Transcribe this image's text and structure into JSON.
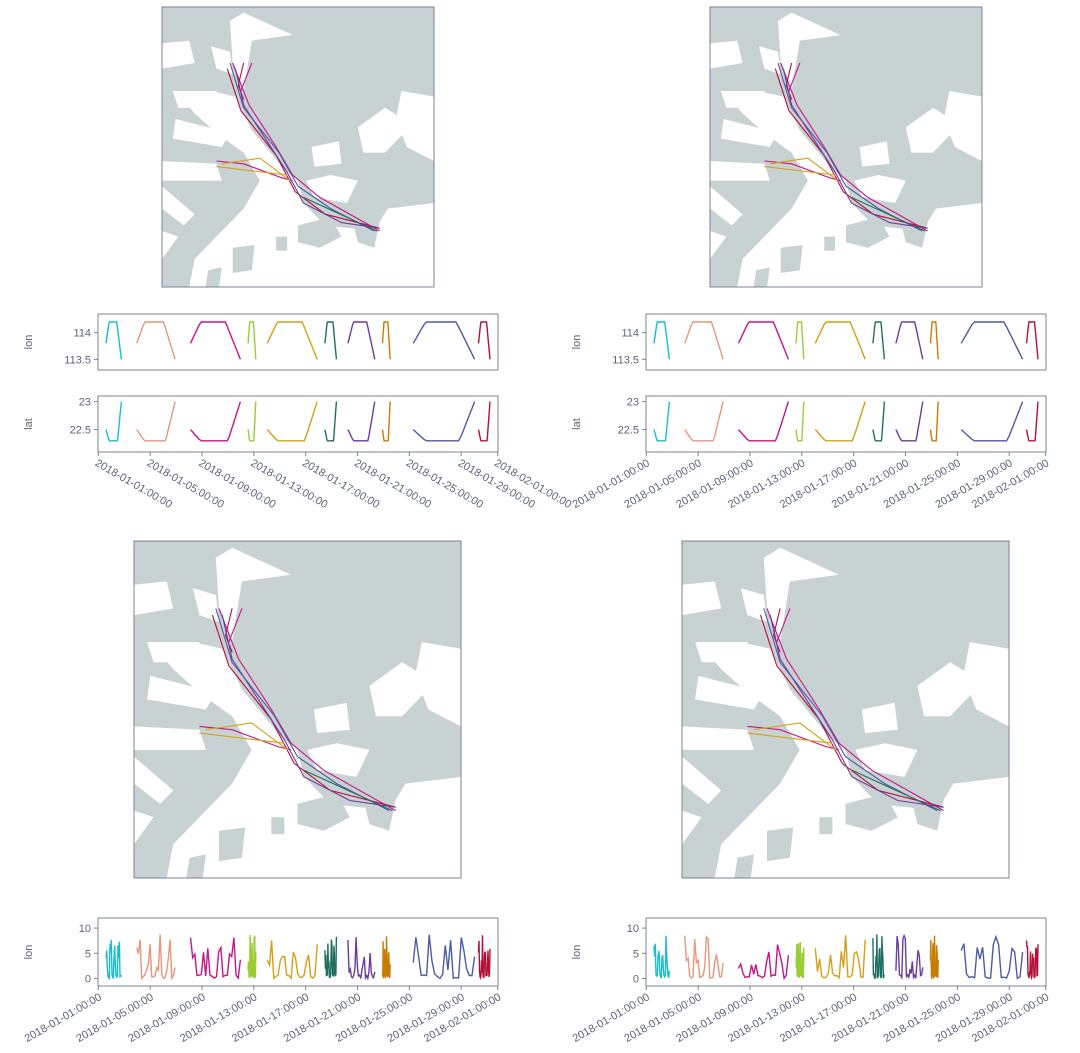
{
  "colors": [
    "#17becf",
    "#e9967a",
    "#c71585",
    "#9acd32",
    "#d4a017",
    "#1f6f5f",
    "#6a3d9a",
    "#c77c02",
    "#4e5aa3",
    "#b30f3a"
  ],
  "chart_data": [
    {
      "id": "top-left",
      "type": "map-with-timeseries",
      "panels": [
        {
          "name": "lon",
          "ylabel": "lon",
          "yticks": [
            113.5,
            114.0
          ],
          "ylim": [
            113.3,
            114.35
          ]
        },
        {
          "name": "lat",
          "ylabel": "lat",
          "yticks": [
            22.5,
            23.0
          ],
          "ylim": [
            22.1,
            23.1
          ]
        }
      ],
      "x_ticklabels": [
        "2018-01-01:00:00",
        "2018-01-05:00:00",
        "2018-01-09:00:00",
        "2018-01-13:00:00",
        "2018-01-17:00:00",
        "2018-01-21:00:00",
        "2018-01-25:00:00",
        "2018-01-29:00:00",
        "2018-02-01:00:00"
      ]
    },
    {
      "id": "top-right",
      "type": "map-with-timeseries",
      "panels": [
        {
          "name": "lon",
          "ylabel": "lon",
          "yticks": [
            113.5,
            114.0
          ],
          "ylim": [
            113.3,
            114.35
          ]
        },
        {
          "name": "lat",
          "ylabel": "lat",
          "yticks": [
            22.5,
            23.0
          ],
          "ylim": [
            22.1,
            23.1
          ]
        }
      ],
      "x_ticklabels": [
        "2018-01-01:00:00",
        "2018-01-05:00:00",
        "2018-01-09:00:00",
        "2018-01-13:00:00",
        "2018-01-17:00:00",
        "2018-01-21:00:00",
        "2018-01-25:00:00",
        "2018-01-29:00:00",
        "2018-02-01:00:00"
      ]
    },
    {
      "id": "bottom-left",
      "type": "map-with-timeseries",
      "panels": [
        {
          "name": "lon",
          "ylabel": "lon",
          "yticks": [
            0,
            5,
            10
          ],
          "ylim": [
            -1.5,
            12
          ]
        }
      ],
      "x_ticklabels": [
        "2018-01-01:00:00",
        "2018-01-05:00:00",
        "2018-01-09:00:00",
        "2018-01-13:00:00",
        "2018-01-17:00:00",
        "2018-01-21:00:00",
        "2018-01-25:00:00",
        "2018-01-29:00:00",
        "2018-02-01:00:00"
      ]
    },
    {
      "id": "bottom-right",
      "type": "map-with-timeseries",
      "panels": [
        {
          "name": "lon",
          "ylabel": "lon",
          "yticks": [
            0,
            5,
            10
          ],
          "ylim": [
            -1.5,
            12
          ]
        }
      ],
      "x_ticklabels": [
        "2018-01-01:00:00",
        "2018-01-05:00:00",
        "2018-01-09:00:00",
        "2018-01-13:00:00",
        "2018-01-17:00:00",
        "2018-01-21:00:00",
        "2018-01-25:00:00",
        "2018-01-29:00:00",
        "2018-02-01:00:00"
      ]
    }
  ]
}
